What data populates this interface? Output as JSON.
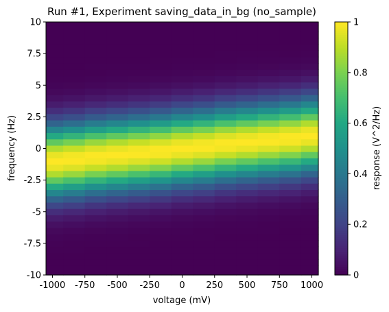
{
  "chart_data": {
    "type": "heatmap",
    "title": "Run #1, Experiment saving_data_in_bg (no_sample)",
    "xlabel": "voltage (mV)",
    "ylabel": "frequency (Hz)",
    "colorbar_label": "response (V^2/Hz)",
    "colormap": "viridis",
    "xlim": [
      -1050,
      1050
    ],
    "ylim": [
      -10,
      10
    ],
    "clim": [
      0,
      1
    ],
    "grid": false,
    "x_ticks": [
      {
        "value": -1000,
        "label": "-1000"
      },
      {
        "value": -750,
        "label": "-750"
      },
      {
        "value": -500,
        "label": "-500"
      },
      {
        "value": -250,
        "label": "-250"
      },
      {
        "value": 0,
        "label": "0"
      },
      {
        "value": 250,
        "label": "250"
      },
      {
        "value": 500,
        "label": "500"
      },
      {
        "value": 750,
        "label": "750"
      },
      {
        "value": 1000,
        "label": "1000"
      }
    ],
    "y_ticks": [
      {
        "value": -10,
        "label": "-10"
      },
      {
        "value": -7.5,
        "label": "-7.5"
      },
      {
        "value": -5,
        "label": "-5"
      },
      {
        "value": -2.5,
        "label": "-2.5"
      },
      {
        "value": 0,
        "label": "0"
      },
      {
        "value": 2.5,
        "label": "2.5"
      },
      {
        "value": 5,
        "label": "5"
      },
      {
        "value": 7.5,
        "label": "7.5"
      },
      {
        "value": 10,
        "label": "10"
      }
    ],
    "colorbar_ticks": [
      {
        "value": 0,
        "label": "0"
      },
      {
        "value": 0.2,
        "label": "0.2"
      },
      {
        "value": 0.4,
        "label": "0.4"
      },
      {
        "value": 0.6,
        "label": "0.6"
      },
      {
        "value": 0.8,
        "label": "0.8"
      },
      {
        "value": 1,
        "label": "1"
      }
    ],
    "voltage_columns": [
      -1000,
      -833.3,
      -666.7,
      -500,
      -333.3,
      -166.7,
      0,
      166.7,
      333.3,
      500,
      666.7,
      833.3,
      1000
    ],
    "peak_frequency": [
      -1.0,
      -0.85,
      -0.65,
      -0.5,
      -0.35,
      -0.2,
      0.0,
      0.15,
      0.35,
      0.5,
      0.65,
      0.8,
      1.0
    ],
    "peak_width_hz": 2.0,
    "frequency_rows": [
      -10,
      -9.5,
      -9,
      -8.5,
      -8,
      -7.5,
      -7,
      -6.5,
      -6,
      -5.5,
      -5,
      -4.5,
      -4,
      -3.5,
      -3,
      -2.5,
      -2,
      -1.5,
      -1,
      -0.5,
      0,
      0.5,
      1,
      1.5,
      2,
      2.5,
      3,
      3.5,
      4,
      4.5,
      5,
      5.5,
      6,
      6.5,
      7,
      7.5,
      8,
      8.5,
      9,
      9.5,
      10
    ]
  }
}
